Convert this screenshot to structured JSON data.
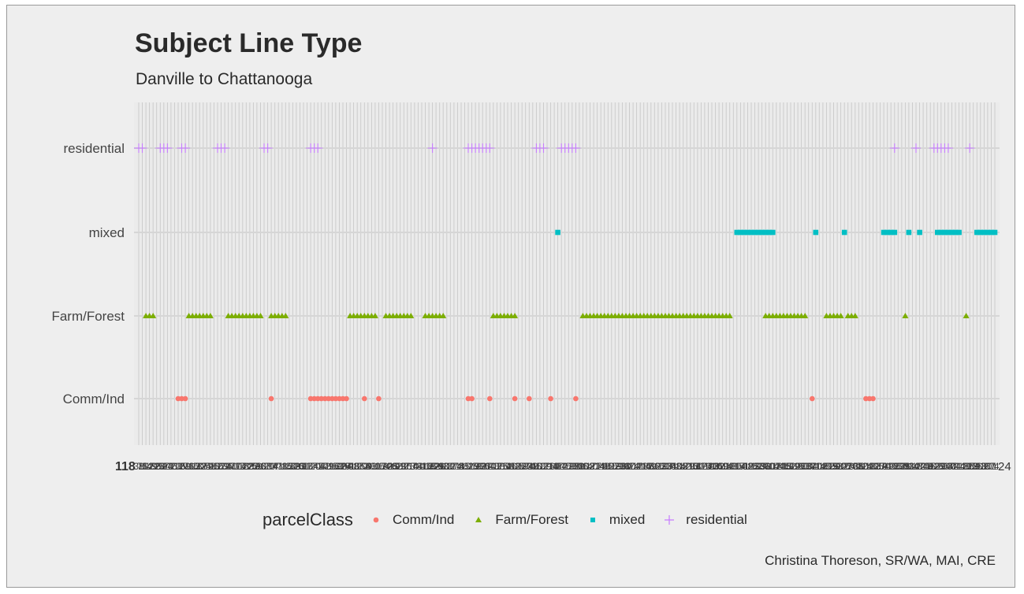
{
  "chart_data": {
    "type": "scatter",
    "title": "Subject Line Type",
    "subtitle": "Danville to Chattanooga",
    "caption": "Christina Thoreson, SR/WA, MAI, CRE",
    "xlabel": "",
    "ylabel": "",
    "categories": [
      "Comm/Ind",
      "Farm/Forest",
      "mixed",
      "residential"
    ],
    "x_range": [
      1,
      240
    ],
    "x_tick_labels_note": "dense overlapping parcel index labels",
    "first_x_tick_label": "118",
    "last_x_tick_label": "24",
    "grid": true,
    "legend": {
      "title": "parcelClass",
      "position": "bottom",
      "entries": [
        "Comm/Ind",
        "Farm/Forest",
        "mixed",
        "residential"
      ]
    },
    "series": [
      {
        "name": "Comm/Ind",
        "color": "#f8766d",
        "shape": "circle",
        "x": [
          12,
          13,
          14,
          38,
          49,
          50,
          51,
          52,
          53,
          54,
          55,
          56,
          57,
          58,
          59,
          64,
          68,
          93,
          94,
          99,
          106,
          110,
          116,
          123,
          189,
          204,
          205,
          206
        ]
      },
      {
        "name": "Farm/Forest",
        "color": "#7cae00",
        "shape": "triangle",
        "x": [
          3,
          4,
          5,
          15,
          16,
          17,
          18,
          19,
          20,
          21,
          26,
          27,
          28,
          29,
          30,
          31,
          32,
          33,
          34,
          35,
          38,
          39,
          40,
          41,
          42,
          60,
          61,
          62,
          63,
          64,
          65,
          66,
          67,
          70,
          71,
          72,
          73,
          74,
          75,
          76,
          77,
          81,
          82,
          83,
          84,
          85,
          86,
          100,
          101,
          102,
          103,
          104,
          105,
          106,
          125,
          126,
          127,
          128,
          129,
          130,
          131,
          132,
          133,
          134,
          135,
          136,
          137,
          138,
          139,
          140,
          141,
          142,
          143,
          144,
          145,
          146,
          147,
          148,
          149,
          150,
          151,
          152,
          153,
          154,
          155,
          156,
          157,
          158,
          159,
          160,
          161,
          162,
          163,
          164,
          165,
          166,
          176,
          177,
          178,
          179,
          180,
          181,
          182,
          183,
          184,
          185,
          186,
          187,
          193,
          194,
          195,
          196,
          197,
          199,
          200,
          201,
          215,
          232
        ]
      },
      {
        "name": "mixed",
        "color": "#00bfc4",
        "shape": "square",
        "x": [
          118,
          168,
          169,
          170,
          171,
          172,
          173,
          174,
          175,
          176,
          177,
          178,
          190,
          198,
          209,
          210,
          211,
          212,
          216,
          219,
          224,
          225,
          226,
          227,
          228,
          229,
          230,
          235,
          236,
          237,
          238,
          239,
          240
        ]
      },
      {
        "name": "residential",
        "color": "#c77cff",
        "shape": "plus",
        "x": [
          1,
          2,
          7,
          8,
          9,
          13,
          14,
          23,
          24,
          25,
          36,
          37,
          49,
          50,
          51,
          83,
          93,
          94,
          95,
          96,
          97,
          98,
          99,
          112,
          113,
          114,
          119,
          120,
          121,
          122,
          123,
          212,
          218,
          223,
          224,
          225,
          226,
          227,
          233
        ]
      }
    ]
  }
}
